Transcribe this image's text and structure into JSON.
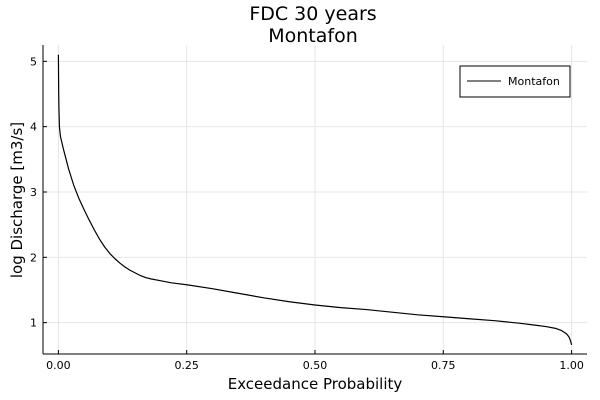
{
  "chart_data": {
    "type": "line",
    "title": "FDC 30 years",
    "subtitle": "Montafon",
    "xlabel": "Exceedance Probability",
    "ylabel": "log Discharge [m3/s]",
    "xlim": [
      -0.03,
      1.03
    ],
    "ylim": [
      0.52,
      5.25
    ],
    "xticks": [
      0.0,
      0.25,
      0.5,
      0.75,
      1.0
    ],
    "xtick_labels": [
      "0.00",
      "0.25",
      "0.50",
      "0.75",
      "1.00"
    ],
    "yticks": [
      1,
      2,
      3,
      4,
      5
    ],
    "ytick_labels": [
      "1",
      "2",
      "3",
      "4",
      "5"
    ],
    "grid": true,
    "legend_position": "top-right",
    "series": [
      {
        "name": "Montafon",
        "color": "#000000",
        "x": [
          0.0,
          0.0005,
          0.001,
          0.002,
          0.004,
          0.007,
          0.01,
          0.015,
          0.02,
          0.03,
          0.04,
          0.05,
          0.06,
          0.07,
          0.08,
          0.09,
          0.1,
          0.11,
          0.12,
          0.13,
          0.14,
          0.15,
          0.16,
          0.17,
          0.18,
          0.2,
          0.22,
          0.25,
          0.3,
          0.35,
          0.4,
          0.45,
          0.5,
          0.55,
          0.6,
          0.65,
          0.7,
          0.75,
          0.8,
          0.85,
          0.9,
          0.93,
          0.95,
          0.97,
          0.98,
          0.99,
          0.995,
          0.998,
          1.0
        ],
        "y": [
          5.1,
          4.6,
          4.3,
          4.0,
          3.85,
          3.75,
          3.65,
          3.5,
          3.35,
          3.1,
          2.9,
          2.73,
          2.57,
          2.42,
          2.28,
          2.16,
          2.06,
          1.98,
          1.91,
          1.85,
          1.8,
          1.76,
          1.72,
          1.69,
          1.67,
          1.64,
          1.61,
          1.58,
          1.52,
          1.45,
          1.38,
          1.32,
          1.27,
          1.23,
          1.2,
          1.16,
          1.12,
          1.09,
          1.06,
          1.03,
          0.99,
          0.96,
          0.94,
          0.91,
          0.88,
          0.83,
          0.78,
          0.72,
          0.66
        ]
      }
    ]
  }
}
